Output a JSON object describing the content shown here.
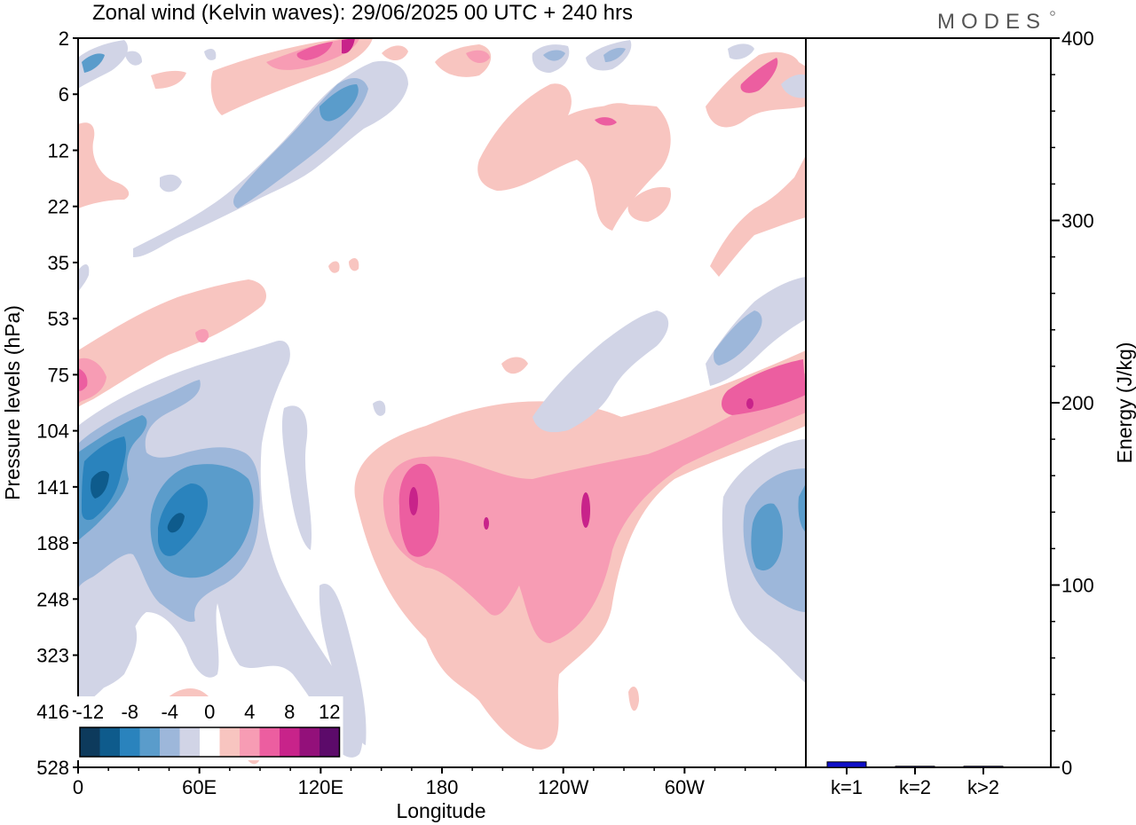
{
  "chart_data": {
    "type": "heatmap",
    "title": "Zonal wind (Kelvin waves):  29/06/2025  00 UTC  + 240 hrs",
    "brand": "MODES",
    "xlabel": "Longitude",
    "ylabel": "Pressure levels (hPa)",
    "x_ticks": [
      "0",
      "60E",
      "120E",
      "180",
      "120W",
      "60W"
    ],
    "y_ticks": [
      "2",
      "6",
      "12",
      "22",
      "35",
      "53",
      "75",
      "104",
      "141",
      "188",
      "248",
      "323",
      "416",
      "528"
    ],
    "y_scale": "pressure levels (non-linear)",
    "colorbar": {
      "labels": [
        "-12",
        "-8",
        "-4",
        "0",
        "4",
        "8",
        "12"
      ],
      "levels": [
        -14,
        -12,
        -10,
        -8,
        -6,
        -4,
        -2,
        2,
        4,
        6,
        8,
        10,
        12,
        14
      ],
      "colors": [
        "#0d3a5c",
        "#0e5b8c",
        "#2a83bd",
        "#5a9ccb",
        "#9db7da",
        "#d1d4e6",
        "#ffffff",
        "#f8c5c0",
        "#f79cb4",
        "#ec5ea0",
        "#c8238a",
        "#93107a",
        "#5c0a6a"
      ]
    },
    "contours": [
      {
        "lon": 25,
        "p": 141,
        "rx": 16,
        "ry": 4,
        "value": -13
      },
      {
        "lon": 55,
        "p": 170,
        "rx": 16,
        "ry": 4,
        "value": -13
      },
      {
        "lon": 165,
        "p": 141,
        "rx": 8,
        "ry": 3,
        "value": 9
      },
      {
        "lon": 175,
        "p": 160,
        "rx": 22,
        "ry": 5,
        "value": 6
      },
      {
        "lon": 260,
        "p": 141,
        "rx": 14,
        "ry": 5,
        "value": 9
      },
      {
        "lon": 300,
        "p": 92,
        "rx": 14,
        "ry": 2,
        "value": 8
      },
      {
        "lon": 340,
        "p": 188,
        "rx": 12,
        "ry": 4,
        "value": -10
      },
      {
        "lon": 100,
        "p": 10,
        "rx": 18,
        "ry": 3,
        "value": -8
      },
      {
        "lon": 110,
        "p": 3,
        "rx": 14,
        "ry": 1,
        "value": 9
      }
    ],
    "energy_panel": {
      "ylabel": "Energy (J/kg)",
      "yticks": [
        "0",
        "100",
        "200",
        "300",
        "400"
      ],
      "ylim": [
        0,
        400
      ],
      "categories": [
        "k=1",
        "k=2",
        "k>2"
      ],
      "values": [
        3,
        0.2,
        0.5
      ],
      "bar_color": "#1010c8"
    }
  }
}
